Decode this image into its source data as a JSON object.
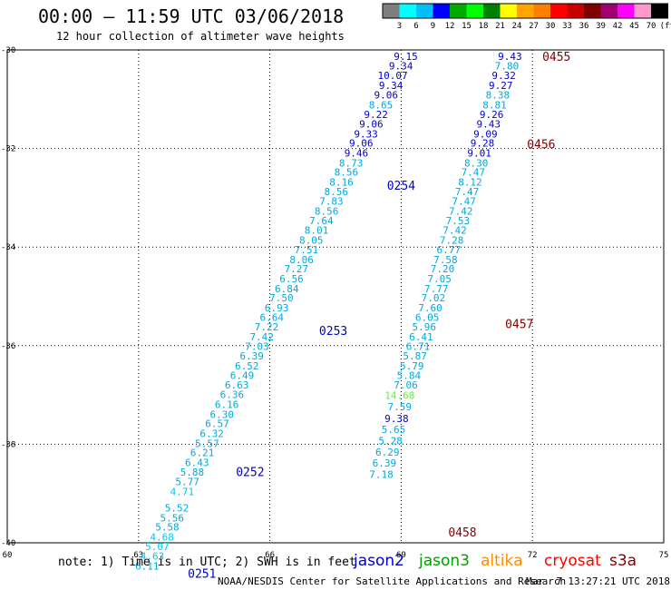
{
  "header": {
    "title": "00:00 — 11:59 UTC 03/06/2018",
    "subtitle": "12 hour collection of altimeter wave heights"
  },
  "color_scale": {
    "ticks": [
      "3",
      "6",
      "9",
      "12",
      "15",
      "18",
      "21",
      "24",
      "27",
      "30",
      "33",
      "36",
      "39",
      "42",
      "45",
      "70",
      "(ft)"
    ],
    "colors": [
      "#7f7f7f",
      "#00ffff",
      "#00bfff",
      "#0000ff",
      "#00aa00",
      "#00ff00",
      "#008000",
      "#ffff00",
      "#ffa500",
      "#ff8000",
      "#ff0000",
      "#c80000",
      "#800000",
      "#a00070",
      "#ff00ff",
      "#ff99cc",
      "#000000"
    ]
  },
  "footer": {
    "note": "note: 1) Time is in UTC; 2) SWH is in feet",
    "satellites": [
      {
        "name": "jason2",
        "color": "#0000cc"
      },
      {
        "name": "jason3",
        "color": "#00a000"
      },
      {
        "name": "altika",
        "color": "#ff8c00"
      },
      {
        "name": "cryosat",
        "color": "#ff0000"
      },
      {
        "name": "s3a",
        "color": "#800000"
      }
    ],
    "credit": "NOAA/NESDIS Center for Satellite Applications and Research",
    "timestamp": "Mar  7 13:27:21 UTC 2018"
  },
  "chart_data": {
    "type": "scatter",
    "title": "00:00 — 11:59 UTC 03/06/2018",
    "subtitle": "12 hour collection of altimeter wave heights",
    "xlim": [
      60,
      75
    ],
    "ylim": [
      -40,
      -30
    ],
    "x_ticks": [
      "60",
      "63",
      "66",
      "69",
      "72",
      "75"
    ],
    "y_ticks": [
      "-30",
      "-32",
      "-34",
      "-36",
      "-38",
      "-40"
    ],
    "grid": true,
    "colors": {
      "jason2": "#0000cc",
      "cyan_low": "#00c8f0",
      "cyan": "#00a8e0",
      "green_light": "#66ee44",
      "s3a": "#800000"
    },
    "tracks": [
      {
        "name": "left-pass",
        "points": [
          {
            "v": "9.15",
            "lon": 69.38,
            "lat": -30.13,
            "c": "jason2"
          },
          {
            "v": "9.34",
            "lon": 69.27,
            "lat": -30.32,
            "c": "jason2"
          },
          {
            "v": "10.07",
            "lon": 69.15,
            "lat": -30.52,
            "c": "jason2"
          },
          {
            "v": "9.34",
            "lon": 69.04,
            "lat": -30.72,
            "c": "jason2"
          },
          {
            "v": "9.06",
            "lon": 68.93,
            "lat": -30.91,
            "c": "jason2"
          },
          {
            "v": "8.65",
            "lon": 68.81,
            "lat": -31.11,
            "c": "cyan"
          },
          {
            "v": "9.22",
            "lon": 68.7,
            "lat": -31.31,
            "c": "jason2"
          },
          {
            "v": "9.06",
            "lon": 68.59,
            "lat": -31.5,
            "c": "jason2"
          },
          {
            "v": "9.33",
            "lon": 68.47,
            "lat": -31.7,
            "c": "jason2"
          },
          {
            "v": "9.06",
            "lon": 68.36,
            "lat": -31.89,
            "c": "jason2"
          },
          {
            "v": "9.46",
            "lon": 68.25,
            "lat": -32.09,
            "c": "jason2"
          },
          {
            "v": "8.73",
            "lon": 68.13,
            "lat": -32.29,
            "c": "cyan"
          },
          {
            "v": "8.56",
            "lon": 68.02,
            "lat": -32.48,
            "c": "cyan"
          },
          {
            "v": "8.16",
            "lon": 67.91,
            "lat": -32.68,
            "c": "cyan"
          },
          {
            "v": "8.56",
            "lon": 67.79,
            "lat": -32.87,
            "c": "cyan"
          },
          {
            "v": "7.83",
            "lon": 67.68,
            "lat": -33.07,
            "c": "cyan"
          },
          {
            "v": "8.56",
            "lon": 67.57,
            "lat": -33.27,
            "c": "cyan"
          },
          {
            "v": "7.64",
            "lon": 67.45,
            "lat": -33.46,
            "c": "cyan"
          },
          {
            "v": "8.01",
            "lon": 67.34,
            "lat": -33.66,
            "c": "cyan"
          },
          {
            "v": "8.05",
            "lon": 67.22,
            "lat": -33.86,
            "c": "cyan"
          },
          {
            "v": "7.51",
            "lon": 67.11,
            "lat": -34.05,
            "c": "cyan"
          },
          {
            "v": "8.06",
            "lon": 67.0,
            "lat": -34.25,
            "c": "cyan"
          },
          {
            "v": "7.27",
            "lon": 66.88,
            "lat": -34.44,
            "c": "cyan"
          },
          {
            "v": "6.56",
            "lon": 66.77,
            "lat": -34.64,
            "c": "cyan"
          },
          {
            "v": "6.84",
            "lon": 66.66,
            "lat": -34.84,
            "c": "cyan"
          },
          {
            "v": "7.50",
            "lon": 66.54,
            "lat": -35.03,
            "c": "cyan"
          },
          {
            "v": "6.93",
            "lon": 66.43,
            "lat": -35.23,
            "c": "cyan"
          },
          {
            "v": "6.64",
            "lon": 66.32,
            "lat": -35.42,
            "c": "cyan"
          },
          {
            "v": "7.22",
            "lon": 66.2,
            "lat": -35.62,
            "c": "cyan"
          },
          {
            "v": "7.42",
            "lon": 66.09,
            "lat": -35.82,
            "c": "cyan"
          },
          {
            "v": "7.03",
            "lon": 65.98,
            "lat": -36.01,
            "c": "cyan"
          },
          {
            "v": "6.39",
            "lon": 65.86,
            "lat": -36.21,
            "c": "cyan"
          },
          {
            "v": "6.52",
            "lon": 65.75,
            "lat": -36.41,
            "c": "cyan"
          },
          {
            "v": "6.49",
            "lon": 65.64,
            "lat": -36.6,
            "c": "cyan"
          },
          {
            "v": "6.63",
            "lon": 65.52,
            "lat": -36.8,
            "c": "cyan"
          },
          {
            "v": "6.36",
            "lon": 65.41,
            "lat": -36.99,
            "c": "cyan"
          },
          {
            "v": "6.16",
            "lon": 65.29,
            "lat": -37.19,
            "c": "cyan"
          },
          {
            "v": "6.30",
            "lon": 65.18,
            "lat": -37.39,
            "c": "cyan"
          },
          {
            "v": "6.57",
            "lon": 65.07,
            "lat": -37.58,
            "c": "cyan"
          },
          {
            "v": "6.32",
            "lon": 64.95,
            "lat": -37.78,
            "c": "cyan"
          },
          {
            "v": "5.57",
            "lon": 64.84,
            "lat": -37.98,
            "c": "cyan"
          },
          {
            "v": "6.21",
            "lon": 64.73,
            "lat": -38.17,
            "c": "cyan"
          },
          {
            "v": "6.43",
            "lon": 64.61,
            "lat": -38.37,
            "c": "cyan"
          },
          {
            "v": "5.88",
            "lon": 64.5,
            "lat": -38.56,
            "c": "cyan"
          },
          {
            "v": "5.77",
            "lon": 64.39,
            "lat": -38.76,
            "c": "cyan"
          },
          {
            "v": "4.71",
            "lon": 64.27,
            "lat": -38.96,
            "c": "cyan_low"
          },
          {
            "v": "5.52",
            "lon": 64.15,
            "lat": -39.29,
            "c": "cyan"
          },
          {
            "v": "5.56",
            "lon": 64.04,
            "lat": -39.49,
            "c": "cyan"
          },
          {
            "v": "5.58",
            "lon": 63.93,
            "lat": -39.68,
            "c": "cyan"
          },
          {
            "v": "4.68",
            "lon": 63.81,
            "lat": -39.88,
            "c": "cyan_low"
          },
          {
            "v": "5.07",
            "lon": 63.7,
            "lat": -40.07,
            "c": "cyan_low"
          },
          {
            "v": "4.63",
            "lon": 63.59,
            "lat": -40.27,
            "c": "cyan_low"
          },
          {
            "v": "6.11",
            "lon": 63.47,
            "lat": -40.47,
            "c": "cyan"
          }
        ]
      },
      {
        "name": "right-pass",
        "points": [
          {
            "v": "9.43",
            "lon": 71.76,
            "lat": -30.13,
            "c": "jason2"
          },
          {
            "v": "7.80",
            "lon": 71.69,
            "lat": -30.32,
            "c": "cyan"
          },
          {
            "v": "9.32",
            "lon": 71.62,
            "lat": -30.52,
            "c": "jason2"
          },
          {
            "v": "9.27",
            "lon": 71.55,
            "lat": -30.72,
            "c": "jason2"
          },
          {
            "v": "8.38",
            "lon": 71.48,
            "lat": -30.91,
            "c": "cyan"
          },
          {
            "v": "8.81",
            "lon": 71.41,
            "lat": -31.11,
            "c": "cyan"
          },
          {
            "v": "9.26",
            "lon": 71.34,
            "lat": -31.31,
            "c": "jason2"
          },
          {
            "v": "9.43",
            "lon": 71.27,
            "lat": -31.5,
            "c": "jason2"
          },
          {
            "v": "9.09",
            "lon": 71.2,
            "lat": -31.7,
            "c": "jason2"
          },
          {
            "v": "9.28",
            "lon": 71.13,
            "lat": -31.89,
            "c": "jason2"
          },
          {
            "v": "9.01",
            "lon": 71.06,
            "lat": -32.09,
            "c": "jason2"
          },
          {
            "v": "8.30",
            "lon": 70.99,
            "lat": -32.29,
            "c": "cyan"
          },
          {
            "v": "7.47",
            "lon": 70.92,
            "lat": -32.48,
            "c": "cyan"
          },
          {
            "v": "8.12",
            "lon": 70.85,
            "lat": -32.68,
            "c": "cyan"
          },
          {
            "v": "7.47",
            "lon": 70.78,
            "lat": -32.87,
            "c": "cyan"
          },
          {
            "v": "7.47",
            "lon": 70.71,
            "lat": -33.07,
            "c": "cyan"
          },
          {
            "v": "7.42",
            "lon": 70.64,
            "lat": -33.27,
            "c": "cyan"
          },
          {
            "v": "7.53",
            "lon": 70.57,
            "lat": -33.46,
            "c": "cyan"
          },
          {
            "v": "7.42",
            "lon": 70.5,
            "lat": -33.66,
            "c": "cyan"
          },
          {
            "v": "7.28",
            "lon": 70.43,
            "lat": -33.86,
            "c": "cyan"
          },
          {
            "v": "6.77",
            "lon": 70.36,
            "lat": -34.05,
            "c": "cyan"
          },
          {
            "v": "7.58",
            "lon": 70.29,
            "lat": -34.25,
            "c": "cyan"
          },
          {
            "v": "7.20",
            "lon": 70.22,
            "lat": -34.44,
            "c": "cyan"
          },
          {
            "v": "7.05",
            "lon": 70.15,
            "lat": -34.64,
            "c": "cyan"
          },
          {
            "v": "7.77",
            "lon": 70.08,
            "lat": -34.84,
            "c": "cyan"
          },
          {
            "v": "7.02",
            "lon": 70.01,
            "lat": -35.03,
            "c": "cyan"
          },
          {
            "v": "7.60",
            "lon": 69.94,
            "lat": -35.23,
            "c": "cyan"
          },
          {
            "v": "6.05",
            "lon": 69.87,
            "lat": -35.42,
            "c": "cyan"
          },
          {
            "v": "5.96",
            "lon": 69.8,
            "lat": -35.62,
            "c": "cyan"
          },
          {
            "v": "6.41",
            "lon": 69.73,
            "lat": -35.82,
            "c": "cyan"
          },
          {
            "v": "6.71",
            "lon": 69.66,
            "lat": -36.01,
            "c": "cyan"
          },
          {
            "v": "5.87",
            "lon": 69.59,
            "lat": -36.21,
            "c": "cyan"
          },
          {
            "v": "5.79",
            "lon": 69.52,
            "lat": -36.41,
            "c": "cyan"
          },
          {
            "v": "5.84",
            "lon": 69.45,
            "lat": -36.6,
            "c": "cyan"
          },
          {
            "v": "7.06",
            "lon": 69.38,
            "lat": -36.8,
            "c": "cyan"
          },
          {
            "v": "14.68",
            "lon": 69.31,
            "lat": -37.01,
            "c": "green_light"
          },
          {
            "v": "7.59",
            "lon": 69.24,
            "lat": -37.24,
            "c": "cyan"
          },
          {
            "v": "9.38",
            "lon": 69.17,
            "lat": -37.48,
            "c": "jason2"
          },
          {
            "v": "5.65",
            "lon": 69.1,
            "lat": -37.7,
            "c": "cyan"
          },
          {
            "v": "5.28",
            "lon": 69.03,
            "lat": -37.93,
            "c": "cyan"
          },
          {
            "v": "6.29",
            "lon": 68.96,
            "lat": -38.16,
            "c": "cyan"
          },
          {
            "v": "6.39",
            "lon": 68.89,
            "lat": -38.38,
            "c": "cyan"
          },
          {
            "v": "7.18",
            "lon": 68.82,
            "lat": -38.61,
            "c": "cyan"
          }
        ]
      }
    ],
    "time_labels": [
      {
        "t": "0455",
        "lon": 72.55,
        "lat": -30.13,
        "c": "s3a"
      },
      {
        "t": "0456",
        "lon": 72.2,
        "lat": -31.91,
        "c": "s3a"
      },
      {
        "t": "0457",
        "lon": 71.7,
        "lat": -35.55,
        "c": "s3a"
      },
      {
        "t": "0458",
        "lon": 70.4,
        "lat": -39.78,
        "c": "s3a"
      },
      {
        "t": "0254",
        "lon": 69.0,
        "lat": -32.74,
        "c": "jason2"
      },
      {
        "t": "0253",
        "lon": 67.45,
        "lat": -35.69,
        "c": "jason2"
      },
      {
        "t": "0252",
        "lon": 65.55,
        "lat": -38.55,
        "c": "jason2"
      },
      {
        "t": "0251",
        "lon": 64.45,
        "lat": -40.62,
        "c": "jason2"
      }
    ]
  }
}
